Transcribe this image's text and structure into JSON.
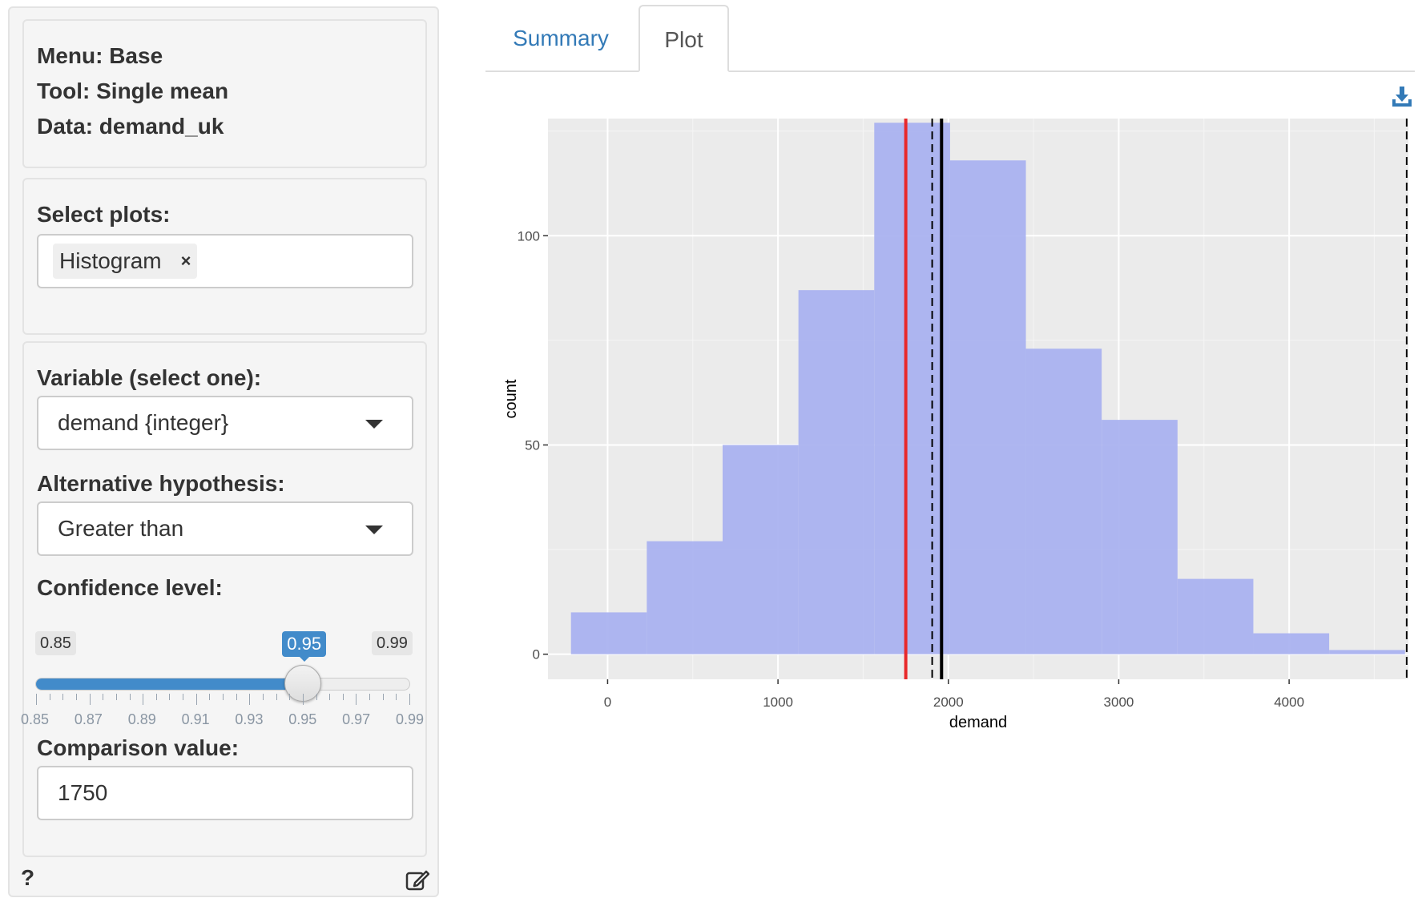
{
  "sidebar": {
    "info": {
      "menu": "Menu: Base",
      "tool": "Tool: Single mean",
      "data": "Data: demand_uk"
    },
    "select_plots": {
      "label": "Select plots:",
      "chip": "Histogram",
      "chip_remove": "×"
    },
    "variable": {
      "label": "Variable (select one):",
      "value": "demand {integer}"
    },
    "alternative": {
      "label": "Alternative hypothesis:",
      "value": "Greater than"
    },
    "confidence": {
      "label": "Confidence level:",
      "min": "0.85",
      "max": "0.99",
      "value": "0.95",
      "value_num": 0.95,
      "min_num": 0.85,
      "max_num": 0.99,
      "tick_labels": [
        "0.85",
        "0.87",
        "0.89",
        "0.91",
        "0.93",
        "0.95",
        "0.97",
        "0.99"
      ]
    },
    "comparison": {
      "label": "Comparison value:",
      "value": "1750"
    },
    "help_icon": "?",
    "report_icon": "edit-icon"
  },
  "tabs": [
    {
      "label": "Summary",
      "active": false
    },
    {
      "label": "Plot",
      "active": true
    }
  ],
  "colors": {
    "accent": "#337ab7",
    "slider": "#428bca",
    "histogram_fill": "#aab2f0",
    "comparison_line": "#e8282a",
    "mean_line": "#000000",
    "panel_bg": "#ebebeb"
  },
  "chart_data": {
    "type": "bar",
    "title": "",
    "xlabel": "demand",
    "ylabel": "count",
    "xlim": [
      -350,
      4700
    ],
    "ylim": [
      -6,
      128
    ],
    "x_ticks": [
      0,
      1000,
      2000,
      3000,
      4000
    ],
    "y_ticks": [
      0,
      50,
      100
    ],
    "bins": [
      {
        "x0": -215,
        "x1": 230,
        "count": 10
      },
      {
        "x0": 230,
        "x1": 675,
        "count": 27
      },
      {
        "x0": 675,
        "x1": 1120,
        "count": 50
      },
      {
        "x0": 1120,
        "x1": 1565,
        "count": 87
      },
      {
        "x0": 1565,
        "x1": 2010,
        "count": 127
      },
      {
        "x0": 2010,
        "x1": 2455,
        "count": 118
      },
      {
        "x0": 2455,
        "x1": 2900,
        "count": 73
      },
      {
        "x0": 2900,
        "x1": 3345,
        "count": 56
      },
      {
        "x0": 3345,
        "x1": 3790,
        "count": 18
      },
      {
        "x0": 3790,
        "x1": 4235,
        "count": 5
      },
      {
        "x0": 4235,
        "x1": 4680,
        "count": 1
      }
    ],
    "vlines": [
      {
        "x": 1750,
        "style": "solid",
        "color": "red"
      },
      {
        "x": 1960,
        "style": "solid",
        "color": "black"
      },
      {
        "x": 1905,
        "style": "dashed",
        "color": "black"
      },
      {
        "x": 4690,
        "style": "dashed",
        "color": "black"
      }
    ],
    "grid": true
  }
}
